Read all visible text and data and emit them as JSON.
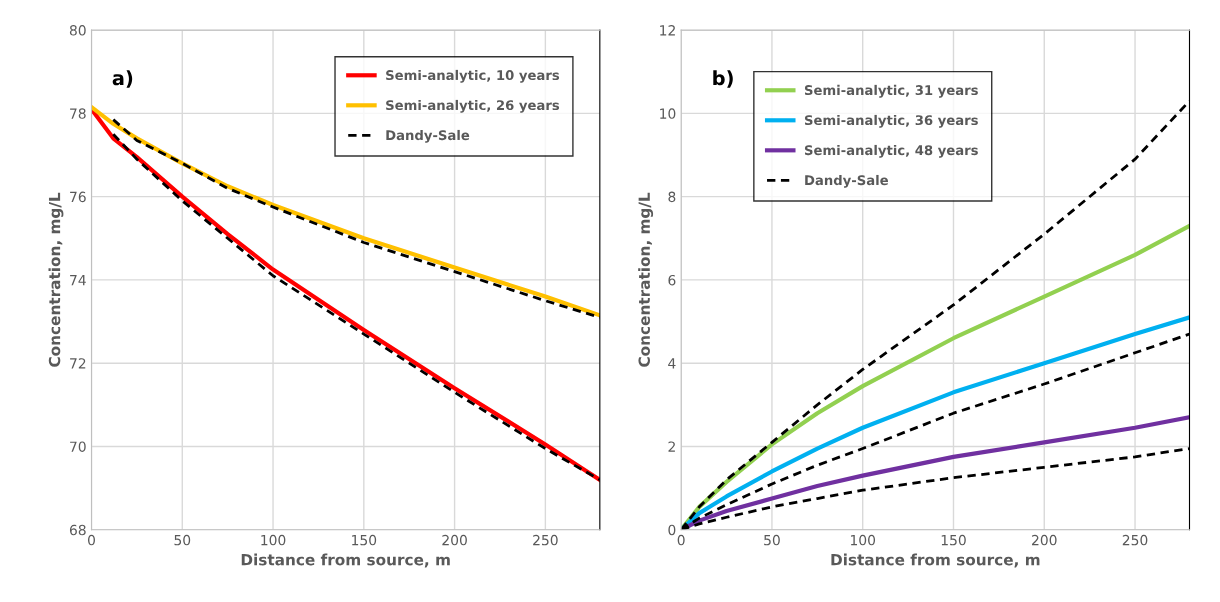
{
  "chart_data": [
    {
      "type": "line",
      "xlabel": "Distance from source, m",
      "ylabel": "Concentration, mg/L",
      "annotations": [
        "a)"
      ],
      "xlim": [
        0,
        280
      ],
      "ylim": [
        68,
        80
      ],
      "xticks": [
        0,
        50,
        100,
        150,
        200,
        250
      ],
      "yticks": [
        68,
        70,
        72,
        74,
        76,
        78,
        80
      ],
      "grid": true,
      "legend": "top right",
      "line_style": "solid",
      "marker": "none",
      "series": [
        {
          "name": "Semi-analytic, 10 years",
          "color": "#ff0000",
          "x": [
            0,
            12,
            25,
            50,
            75,
            100,
            150,
            200,
            250,
            280
          ],
          "values": [
            78.1,
            77.4,
            76.95,
            76.0,
            75.1,
            74.25,
            72.8,
            71.4,
            70.05,
            69.2
          ]
        },
        {
          "name": "Semi-analytic, 26 years",
          "color": "#ffc000",
          "x": [
            0,
            12,
            25,
            50,
            75,
            100,
            150,
            200,
            250,
            280
          ],
          "values": [
            78.15,
            77.75,
            77.4,
            76.8,
            76.25,
            75.8,
            75.0,
            74.3,
            73.6,
            73.15
          ]
        },
        {
          "name": "Dandy-Sale",
          "color": "#000000",
          "line_style": "dashed",
          "x": [
            12,
            25,
            50,
            75,
            100,
            150,
            200,
            250,
            280
          ],
          "values": [
            77.85,
            77.35,
            76.8,
            76.2,
            75.75,
            74.9,
            74.2,
            73.5,
            73.1
          ]
        },
        {
          "color": "#000000",
          "line_style": "dashed",
          "x": [
            12,
            25,
            50,
            75,
            100,
            150,
            200,
            250,
            280
          ],
          "values": [
            77.5,
            76.9,
            75.9,
            75.0,
            74.1,
            72.7,
            71.3,
            69.95,
            69.2
          ]
        }
      ]
    },
    {
      "type": "line",
      "xlabel": "Distance from source, m",
      "ylabel": "Concentration, mg/L",
      "annotations": [
        "b)"
      ],
      "xlim": [
        0,
        280
      ],
      "ylim": [
        0,
        12
      ],
      "xticks": [
        0,
        50,
        100,
        150,
        200,
        250
      ],
      "yticks": [
        0,
        2,
        4,
        6,
        8,
        10,
        12
      ],
      "grid": true,
      "legend": "top left",
      "line_style": "solid",
      "marker": "none",
      "series": [
        {
          "name": "Semi-analytic, 31 years",
          "color": "#92d050",
          "x": [
            0,
            10,
            25,
            50,
            75,
            100,
            150,
            200,
            250,
            280
          ],
          "values": [
            0,
            0.55,
            1.15,
            2.05,
            2.8,
            3.45,
            4.6,
            5.6,
            6.6,
            7.3
          ]
        },
        {
          "name": "Semi-analytic, 36 years",
          "color": "#00b0f0",
          "x": [
            0,
            10,
            25,
            50,
            75,
            100,
            150,
            200,
            250,
            280
          ],
          "values": [
            0,
            0.4,
            0.8,
            1.4,
            1.95,
            2.45,
            3.3,
            4.0,
            4.7,
            5.1
          ]
        },
        {
          "name": "Semi-analytic, 48 years",
          "color": "#7030a0",
          "x": [
            0,
            10,
            25,
            50,
            75,
            100,
            150,
            200,
            250,
            280
          ],
          "values": [
            0,
            0.22,
            0.45,
            0.75,
            1.05,
            1.3,
            1.75,
            2.1,
            2.45,
            2.7
          ]
        },
        {
          "name": "Dandy-Sale",
          "color": "#000000",
          "line_style": "dashed",
          "x": [
            0,
            10,
            25,
            50,
            75,
            100,
            150,
            200,
            250,
            280
          ],
          "values": [
            0,
            0.55,
            1.2,
            2.1,
            3.0,
            3.85,
            5.4,
            7.1,
            8.9,
            10.3
          ]
        },
        {
          "color": "#000000",
          "line_style": "dashed",
          "x": [
            0,
            10,
            25,
            50,
            75,
            100,
            150,
            200,
            250,
            280
          ],
          "values": [
            0,
            0.28,
            0.6,
            1.1,
            1.55,
            1.95,
            2.8,
            3.5,
            4.25,
            4.7
          ]
        },
        {
          "color": "#000000",
          "line_style": "dashed",
          "x": [
            0,
            10,
            25,
            50,
            75,
            100,
            150,
            200,
            250,
            280
          ],
          "values": [
            0,
            0.14,
            0.3,
            0.55,
            0.75,
            0.95,
            1.25,
            1.5,
            1.75,
            1.95
          ]
        }
      ]
    }
  ]
}
